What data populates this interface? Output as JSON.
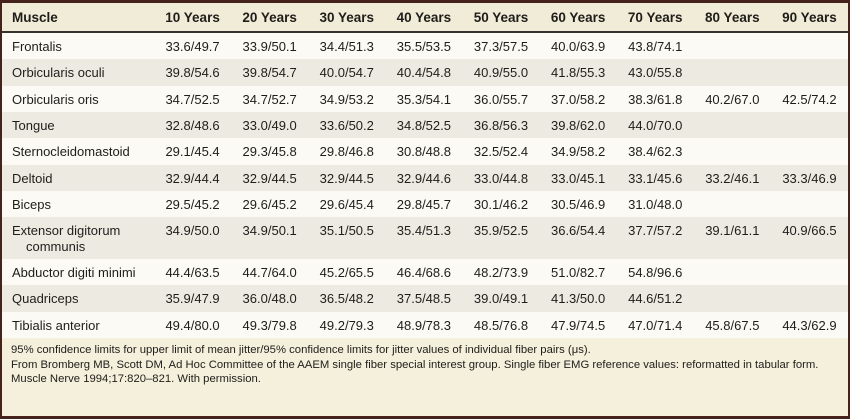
{
  "table": {
    "columns": [
      "Muscle",
      "10 Years",
      "20 Years",
      "30 Years",
      "40 Years",
      "50 Years",
      "60 Years",
      "70 Years",
      "80 Years",
      "90 Years"
    ],
    "rows": [
      {
        "muscle": "Frontalis",
        "values": [
          "33.6/49.7",
          "33.9/50.1",
          "34.4/51.3",
          "35.5/53.5",
          "37.3/57.5",
          "40.0/63.9",
          "43.8/74.1",
          "",
          ""
        ]
      },
      {
        "muscle": "Orbicularis oculi",
        "values": [
          "39.8/54.6",
          "39.8/54.7",
          "40.0/54.7",
          "40.4/54.8",
          "40.9/55.0",
          "41.8/55.3",
          "43.0/55.8",
          "",
          ""
        ]
      },
      {
        "muscle": "Orbicularis oris",
        "values": [
          "34.7/52.5",
          "34.7/52.7",
          "34.9/53.2",
          "35.3/54.1",
          "36.0/55.7",
          "37.0/58.2",
          "38.3/61.8",
          "40.2/67.0",
          "42.5/74.2"
        ]
      },
      {
        "muscle": "Tongue",
        "values": [
          "32.8/48.6",
          "33.0/49.0",
          "33.6/50.2",
          "34.8/52.5",
          "36.8/56.3",
          "39.8/62.0",
          "44.0/70.0",
          "",
          ""
        ]
      },
      {
        "muscle": "Sternocleidomastoid",
        "values": [
          "29.1/45.4",
          "29.3/45.8",
          "29.8/46.8",
          "30.8/48.8",
          "32.5/52.4",
          "34.9/58.2",
          "38.4/62.3",
          "",
          ""
        ]
      },
      {
        "muscle": "Deltoid",
        "values": [
          "32.9/44.4",
          "32.9/44.5",
          "32.9/44.5",
          "32.9/44.6",
          "33.0/44.8",
          "33.0/45.1",
          "33.1/45.6",
          "33.2/46.1",
          "33.3/46.9"
        ]
      },
      {
        "muscle": "Biceps",
        "values": [
          "29.5/45.2",
          "29.6/45.2",
          "29.6/45.4",
          "29.8/45.7",
          "30.1/46.2",
          "30.5/46.9",
          "31.0/48.0",
          "",
          ""
        ]
      },
      {
        "muscle": "Extensor digitorum communis",
        "values": [
          "34.9/50.0",
          "34.9/50.1",
          "35.1/50.5",
          "35.4/51.3",
          "35.9/52.5",
          "36.6/54.4",
          "37.7/57.2",
          "39.1/61.1",
          "40.9/66.5"
        ]
      },
      {
        "muscle": "Abductor digiti minimi",
        "values": [
          "44.4/63.5",
          "44.7/64.0",
          "45.2/65.5",
          "46.4/68.6",
          "48.2/73.9",
          "51.0/82.7",
          "54.8/96.6",
          "",
          ""
        ]
      },
      {
        "muscle": "Quadriceps",
        "values": [
          "35.9/47.9",
          "36.0/48.0",
          "36.5/48.2",
          "37.5/48.5",
          "39.0/49.1",
          "41.3/50.0",
          "44.6/51.2",
          "",
          ""
        ]
      },
      {
        "muscle": "Tibialis anterior",
        "values": [
          "49.4/80.0",
          "49.3/79.8",
          "49.2/79.3",
          "48.9/78.3",
          "48.5/76.8",
          "47.9/74.5",
          "47.0/71.4",
          "45.8/67.5",
          "44.3/62.9"
        ]
      }
    ],
    "footnotes": [
      "95% confidence limits for upper limit of mean jitter/95% confidence limits for jitter values of individual fiber pairs (μs).",
      "From Bromberg MB, Scott DM, Ad Hoc Committee of the AAEM single fiber special interest group. Single fiber EMG reference values: reformatted in tabular form. Muscle Nerve 1994;17:820–821. With permission."
    ]
  },
  "colors": {
    "frame_border": "#45231c",
    "header_background": "#f1ecd7",
    "row_light": "#fbfaf4",
    "row_shaded": "#edebe1",
    "footnote_background": "#f4f0dc",
    "text": "#1f1d1a"
  }
}
